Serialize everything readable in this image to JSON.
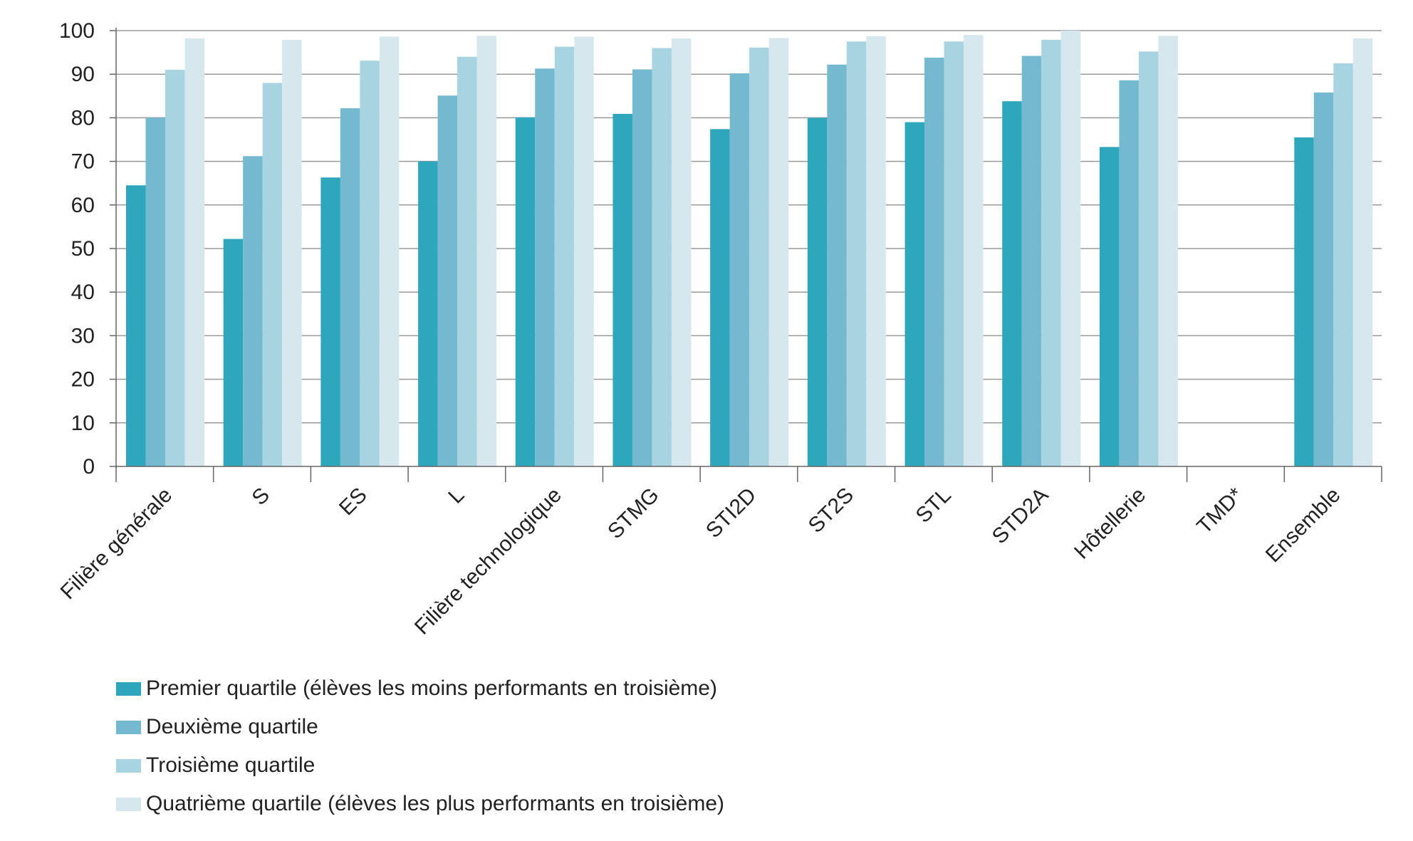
{
  "chart_data": {
    "type": "bar",
    "categories": [
      "Filière générale",
      "S",
      "ES",
      "L",
      "Filière technologique",
      "STMG",
      "STI2D",
      "ST2S",
      "STL",
      "STD2A",
      "Hôtellerie",
      "TMD*",
      "Ensemble"
    ],
    "series": [
      {
        "name": "Premier quartile (élèves les moins performants en troisième)",
        "color": "#2ea7bd",
        "values": [
          64.5,
          52.2,
          66.3,
          70.0,
          80.1,
          80.9,
          77.4,
          80.0,
          79.0,
          83.8,
          73.3,
          null,
          75.5
        ]
      },
      {
        "name": "Deuxième quartile",
        "color": "#74b9cf",
        "values": [
          80.0,
          71.2,
          82.2,
          85.1,
          91.3,
          91.1,
          90.2,
          92.2,
          93.8,
          94.2,
          88.6,
          null,
          85.8
        ]
      },
      {
        "name": "Troisième quartile",
        "color": "#a8d3e0",
        "values": [
          91.0,
          88.0,
          93.1,
          94.0,
          96.3,
          96.0,
          96.1,
          97.5,
          97.5,
          97.9,
          95.2,
          null,
          92.5
        ]
      },
      {
        "name": "Quatrième quartile (élèves les plus performants en troisième)",
        "color": "#d6e8ee",
        "values": [
          98.2,
          97.9,
          98.6,
          98.8,
          98.6,
          98.2,
          98.3,
          98.7,
          99.0,
          100.0,
          98.8,
          null,
          98.2
        ]
      }
    ],
    "yticks": [
      "0",
      "10",
      "20",
      "30",
      "40",
      "50",
      "60",
      "70",
      "80",
      "90",
      "100"
    ],
    "ylim": [
      0,
      100
    ],
    "grid": true,
    "legend_position": "bottom"
  }
}
